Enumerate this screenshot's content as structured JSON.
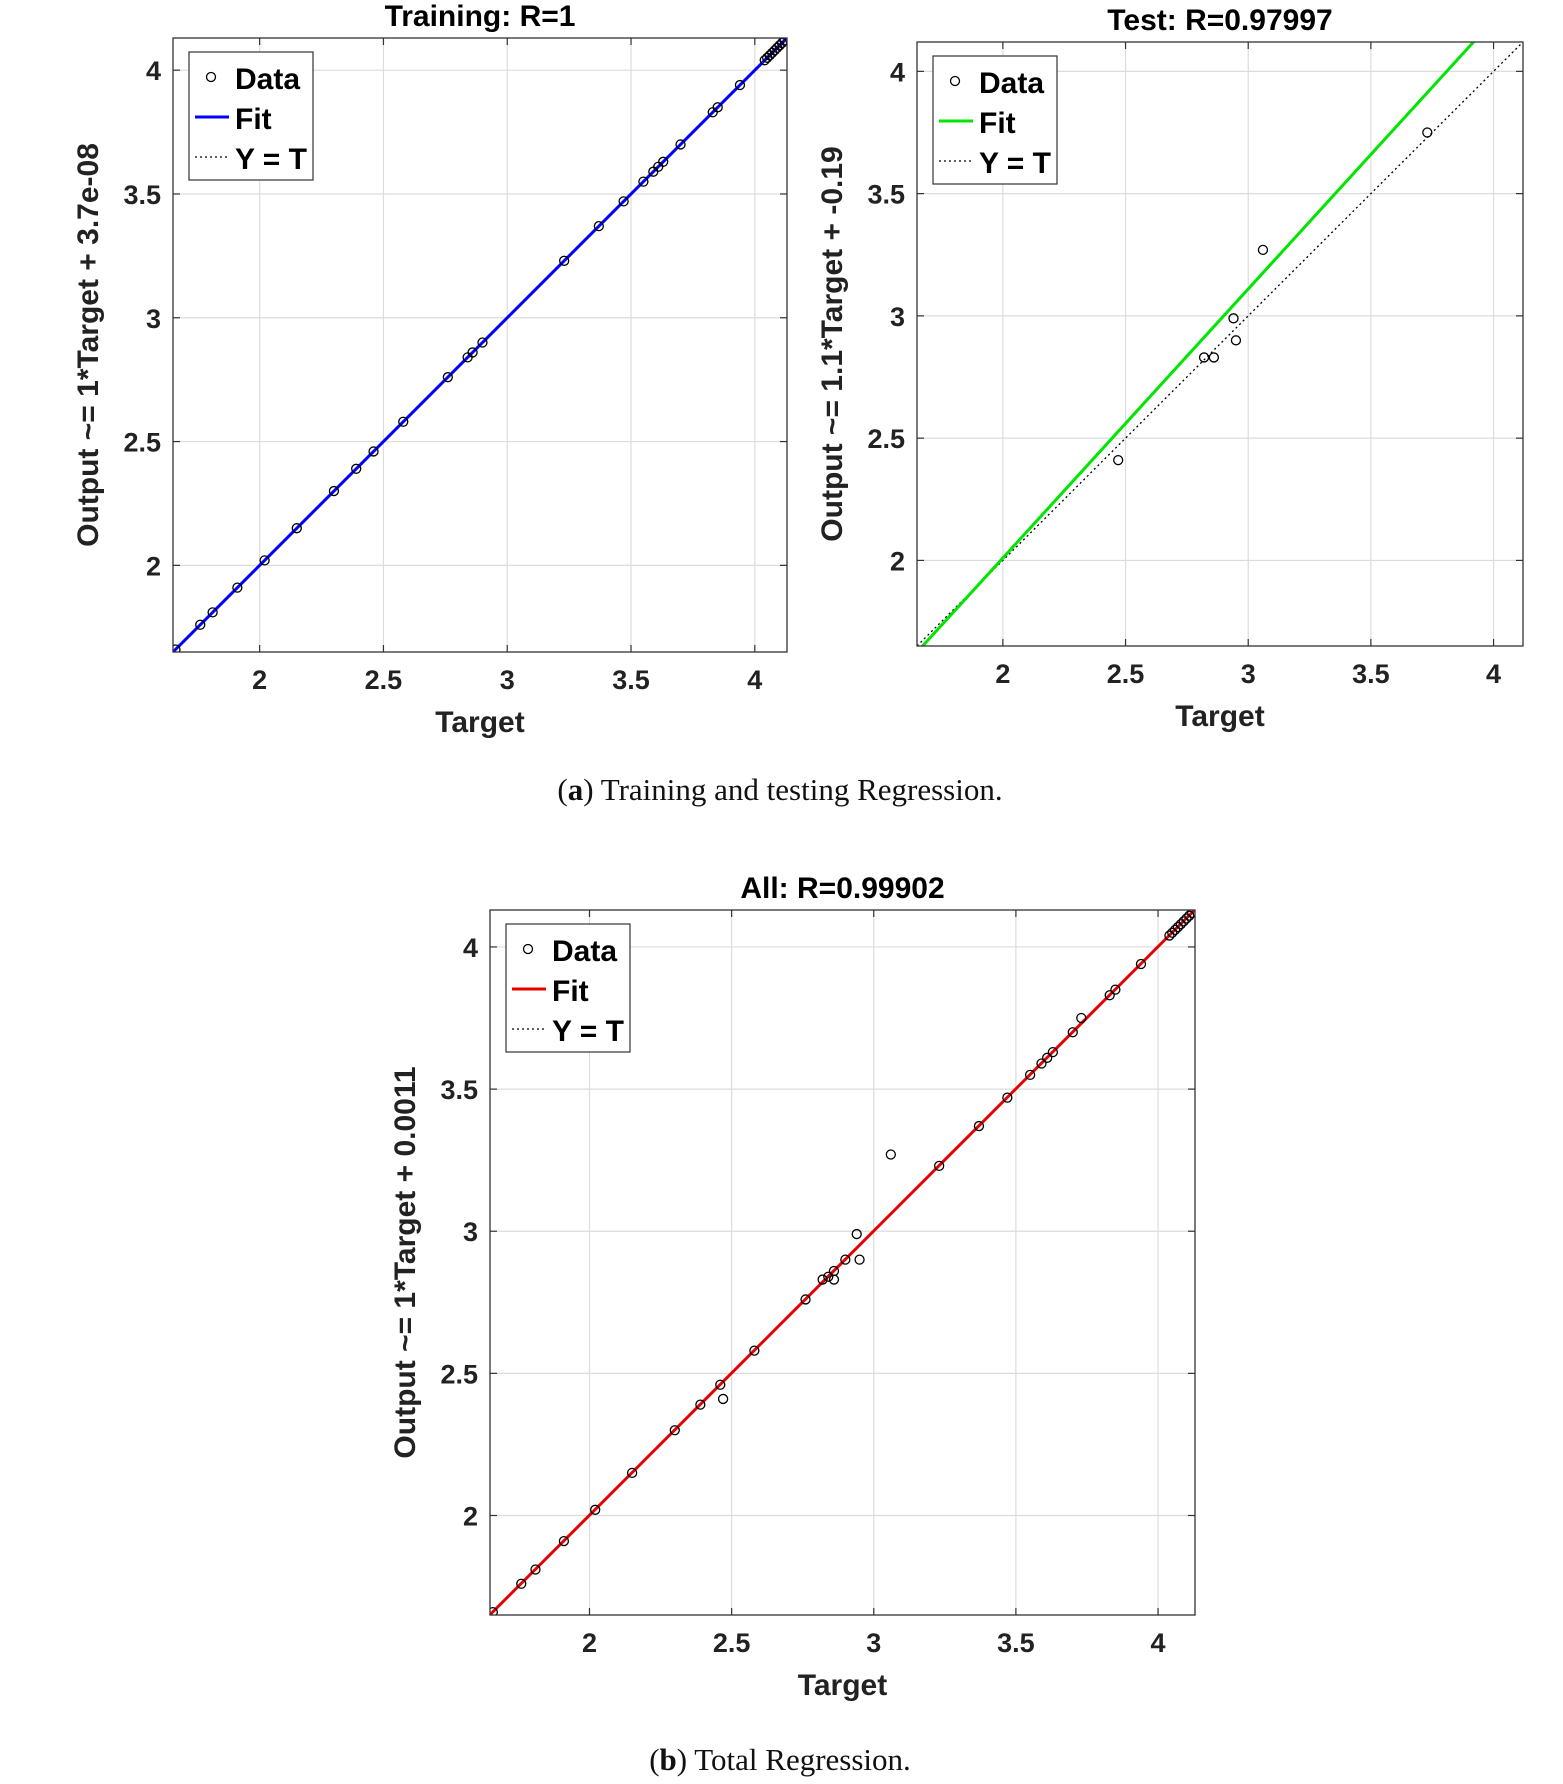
{
  "captions": [
    {
      "label": "a",
      "text": "Training and testing Regression."
    },
    {
      "label": "b",
      "text": "Total Regression."
    }
  ],
  "chart_data": [
    {
      "type": "scatter",
      "title": "Training: R=1",
      "xlabel": "Target",
      "ylabel": "Output ~= 1*Target + 3.7e-08",
      "xlim": [
        1.65,
        4.13
      ],
      "ylim": [
        1.65,
        4.13
      ],
      "xticks": [
        "2",
        "2.5",
        "3",
        "3.5",
        "4"
      ],
      "yticks": [
        "2",
        "2.5",
        "3",
        "3.5",
        "4"
      ],
      "grid": true,
      "legend": {
        "position": "top-left",
        "entries": [
          "Data",
          "Fit",
          "Y = T"
        ]
      },
      "fit": {
        "slope": 1,
        "intercept": 0,
        "color": "#0000ff"
      },
      "colors": {
        "data": "#000000",
        "fit": "#0000ff",
        "identity": "#000000"
      },
      "points": [
        [
          1.66,
          1.66
        ],
        [
          1.76,
          1.76
        ],
        [
          1.81,
          1.81
        ],
        [
          1.91,
          1.91
        ],
        [
          2.02,
          2.02
        ],
        [
          2.15,
          2.15
        ],
        [
          2.3,
          2.3
        ],
        [
          2.39,
          2.39
        ],
        [
          2.46,
          2.46
        ],
        [
          2.58,
          2.58
        ],
        [
          2.76,
          2.76
        ],
        [
          2.84,
          2.84
        ],
        [
          2.86,
          2.86
        ],
        [
          2.9,
          2.9
        ],
        [
          3.23,
          3.23
        ],
        [
          3.37,
          3.37
        ],
        [
          3.47,
          3.47
        ],
        [
          3.55,
          3.55
        ],
        [
          3.59,
          3.59
        ],
        [
          3.61,
          3.61
        ],
        [
          3.63,
          3.63
        ],
        [
          3.7,
          3.7
        ],
        [
          3.83,
          3.83
        ],
        [
          3.85,
          3.85
        ],
        [
          3.94,
          3.94
        ],
        [
          4.04,
          4.04
        ],
        [
          4.05,
          4.05
        ],
        [
          4.06,
          4.06
        ],
        [
          4.07,
          4.07
        ],
        [
          4.08,
          4.08
        ],
        [
          4.09,
          4.09
        ],
        [
          4.1,
          4.1
        ],
        [
          4.11,
          4.11
        ],
        [
          4.12,
          4.12
        ]
      ]
    },
    {
      "type": "scatter",
      "title": "Test: R=0.97997",
      "xlabel": "Target",
      "ylabel": "Output ~= 1.1*Target + -0.19",
      "xlim": [
        1.65,
        4.12
      ],
      "ylim": [
        1.65,
        4.12
      ],
      "xticks": [
        "2",
        "2.5",
        "3",
        "3.5",
        "4"
      ],
      "yticks": [
        "2",
        "2.5",
        "3",
        "3.5",
        "4"
      ],
      "grid": true,
      "legend": {
        "position": "top-left",
        "entries": [
          "Data",
          "Fit",
          "Y = T"
        ]
      },
      "fit": {
        "slope": 1.1,
        "intercept": -0.19,
        "color": "#00e600"
      },
      "colors": {
        "data": "#000000",
        "fit": "#00e600",
        "identity": "#000000"
      },
      "points": [
        [
          2.47,
          2.41
        ],
        [
          2.82,
          2.83
        ],
        [
          2.86,
          2.83
        ],
        [
          2.94,
          2.99
        ],
        [
          2.95,
          2.9
        ],
        [
          3.06,
          3.27
        ],
        [
          3.73,
          3.75
        ]
      ]
    },
    {
      "type": "scatter",
      "title": "All: R=0.99902",
      "xlabel": "Target",
      "ylabel": "Output ~= 1*Target + 0.0011",
      "xlim": [
        1.65,
        4.13
      ],
      "ylim": [
        1.65,
        4.13
      ],
      "xticks": [
        "2",
        "2.5",
        "3",
        "3.5",
        "4"
      ],
      "yticks": [
        "2",
        "2.5",
        "3",
        "3.5",
        "4"
      ],
      "grid": true,
      "legend": {
        "position": "top-left",
        "entries": [
          "Data",
          "Fit",
          "Y = T"
        ]
      },
      "fit": {
        "slope": 1,
        "intercept": 0.0011,
        "color": "#e60000"
      },
      "colors": {
        "data": "#000000",
        "fit": "#e60000",
        "identity": "#000000"
      },
      "points": [
        [
          1.66,
          1.66
        ],
        [
          1.76,
          1.76
        ],
        [
          1.81,
          1.81
        ],
        [
          1.91,
          1.91
        ],
        [
          2.02,
          2.02
        ],
        [
          2.15,
          2.15
        ],
        [
          2.3,
          2.3
        ],
        [
          2.39,
          2.39
        ],
        [
          2.46,
          2.46
        ],
        [
          2.47,
          2.41
        ],
        [
          2.58,
          2.58
        ],
        [
          2.76,
          2.76
        ],
        [
          2.82,
          2.83
        ],
        [
          2.84,
          2.84
        ],
        [
          2.86,
          2.83
        ],
        [
          2.86,
          2.86
        ],
        [
          2.9,
          2.9
        ],
        [
          2.94,
          2.99
        ],
        [
          2.95,
          2.9
        ],
        [
          3.06,
          3.27
        ],
        [
          3.23,
          3.23
        ],
        [
          3.37,
          3.37
        ],
        [
          3.47,
          3.47
        ],
        [
          3.55,
          3.55
        ],
        [
          3.59,
          3.59
        ],
        [
          3.61,
          3.61
        ],
        [
          3.63,
          3.63
        ],
        [
          3.7,
          3.7
        ],
        [
          3.73,
          3.75
        ],
        [
          3.83,
          3.83
        ],
        [
          3.85,
          3.85
        ],
        [
          3.94,
          3.94
        ],
        [
          4.04,
          4.04
        ],
        [
          4.05,
          4.05
        ],
        [
          4.06,
          4.06
        ],
        [
          4.07,
          4.07
        ],
        [
          4.08,
          4.08
        ],
        [
          4.09,
          4.09
        ],
        [
          4.1,
          4.1
        ],
        [
          4.11,
          4.11
        ],
        [
          4.12,
          4.12
        ]
      ]
    }
  ]
}
